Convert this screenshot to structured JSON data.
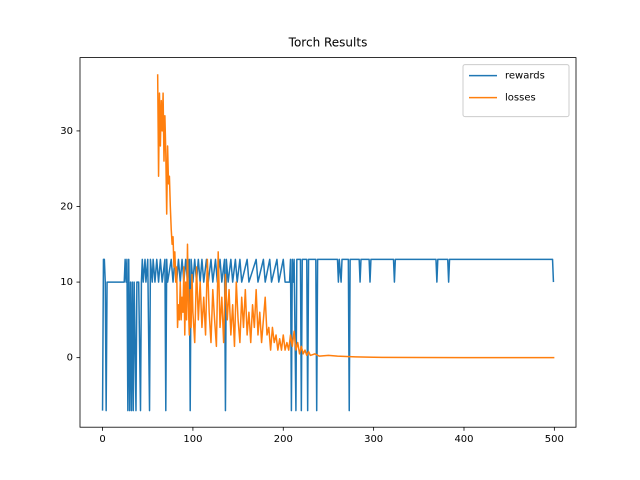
{
  "chart_data": {
    "type": "line",
    "title": "Torch Results",
    "xlim": [
      -24.95,
      523.95
    ],
    "xticks": [
      0,
      100,
      200,
      300,
      400,
      500
    ],
    "ylim": [
      -9.2,
      39.7
    ],
    "yticks": [
      0,
      10,
      20,
      30
    ],
    "grid": false,
    "legend": "upper right",
    "series": [
      {
        "name": "rewards",
        "color": "#1f77b4",
        "x": [
          0,
          1,
          2,
          3,
          4,
          5,
          24,
          25,
          26,
          27,
          28,
          29,
          30,
          31,
          32,
          33,
          34,
          35,
          37,
          38,
          40,
          42,
          43,
          44,
          45,
          47,
          48,
          50,
          52,
          53,
          55,
          56,
          58,
          60,
          62,
          64,
          66,
          69,
          70,
          71,
          72,
          76,
          78,
          80,
          82,
          84,
          86,
          88,
          90,
          92,
          94,
          96,
          97,
          98,
          100,
          102,
          104,
          106,
          108,
          110,
          112,
          115,
          117,
          120,
          122,
          125,
          127,
          130,
          132,
          135,
          136,
          137,
          139,
          142,
          144,
          147,
          149,
          152,
          154,
          160,
          162,
          170,
          172,
          178,
          180,
          185,
          187,
          193,
          195,
          200,
          202,
          207,
          208,
          209,
          210,
          211,
          212,
          214,
          215,
          219,
          220,
          221,
          226,
          227,
          228,
          236,
          237,
          238,
          260,
          261,
          262,
          264,
          265,
          272,
          273,
          274,
          284,
          285,
          286,
          295,
          296,
          297,
          322,
          323,
          324,
          369,
          370,
          371,
          382,
          383,
          384,
          498,
          499
        ],
        "values": [
          -7,
          13,
          13,
          10,
          -7,
          10,
          10,
          13,
          10,
          13,
          -7,
          13,
          -7,
          10,
          -7,
          10,
          -7,
          10,
          -7,
          10,
          10,
          -7,
          10,
          13,
          10,
          13,
          10,
          13,
          -7,
          13,
          10,
          13,
          10,
          13,
          10,
          13,
          10,
          13,
          -7,
          13,
          10,
          13,
          10,
          13,
          10,
          13,
          10,
          13,
          10,
          13,
          10,
          13,
          -7,
          13,
          10,
          13,
          10,
          13,
          10,
          13,
          10,
          13,
          10,
          13,
          10,
          13,
          10,
          13,
          10,
          13,
          -7,
          13,
          10,
          13,
          10,
          13,
          10,
          13,
          10,
          13,
          10,
          13,
          10,
          13,
          10,
          13,
          10,
          13,
          10,
          13,
          10,
          10,
          13,
          -7,
          13,
          10,
          13,
          -7,
          13,
          13,
          -7,
          13,
          13,
          -7,
          13,
          13,
          -7,
          13,
          13,
          10,
          13,
          10,
          13,
          13,
          -7,
          13,
          13,
          10,
          13,
          13,
          10,
          13,
          13,
          10,
          13,
          13,
          10,
          13,
          13,
          10,
          13,
          13,
          10
        ]
      },
      {
        "name": "losses",
        "color": "#ff7f0e",
        "x": [
          61,
          62,
          63,
          64,
          65,
          66,
          67,
          68,
          69,
          70,
          71,
          72,
          73,
          74,
          75,
          76,
          77,
          78,
          79,
          80,
          81,
          82,
          83,
          84,
          85,
          86,
          87,
          88,
          89,
          90,
          91,
          92,
          93,
          94,
          95,
          96,
          97,
          98,
          99,
          100,
          102,
          104,
          106,
          108,
          110,
          112,
          114,
          116,
          118,
          120,
          122,
          124,
          126,
          128,
          130,
          132,
          134,
          136,
          138,
          140,
          142,
          144,
          146,
          148,
          150,
          152,
          154,
          156,
          158,
          160,
          162,
          164,
          166,
          168,
          170,
          172,
          174,
          176,
          178,
          180,
          182,
          184,
          186,
          188,
          190,
          192,
          194,
          196,
          198,
          200,
          202,
          204,
          206,
          208,
          210,
          212,
          214,
          216,
          218,
          220,
          222,
          224,
          226,
          228,
          230,
          235,
          240,
          250,
          260,
          270,
          280,
          300,
          350,
          400,
          500
        ],
        "values": [
          37.5,
          24,
          35,
          28,
          34,
          30,
          35,
          26,
          32,
          27,
          19,
          28,
          23,
          24,
          20,
          17,
          15,
          16,
          12,
          14,
          10,
          12,
          4,
          7,
          5,
          10,
          5,
          8,
          6,
          12,
          3,
          10,
          5,
          15,
          7,
          3,
          9,
          4,
          11,
          6,
          2,
          12,
          5,
          10,
          4,
          8,
          3,
          13,
          6,
          2,
          9,
          5,
          1.5,
          14,
          4,
          8,
          2,
          11,
          5,
          9,
          3,
          7,
          1.5,
          10,
          5,
          2,
          8,
          4,
          9,
          3,
          6,
          2,
          7,
          4,
          9,
          3,
          6,
          2,
          5,
          8,
          3,
          4,
          1,
          4,
          2,
          3,
          1,
          2.5,
          1,
          3,
          1,
          2,
          1,
          3,
          1.5,
          3.5,
          1,
          2,
          0.5,
          1.5,
          0.5,
          1,
          0.3,
          0.8,
          0.3,
          0.5,
          0.2,
          0.3,
          0.2,
          0.15,
          0.1,
          0.05,
          0.02,
          0.01,
          0.01
        ]
      }
    ]
  }
}
